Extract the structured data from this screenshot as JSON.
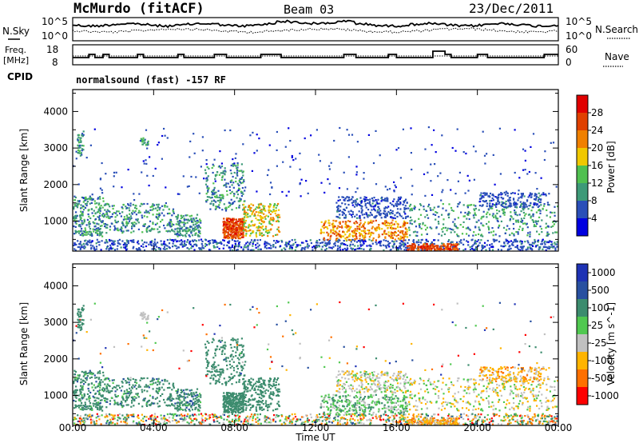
{
  "header": {
    "station": "McMurdo (fitACF)",
    "beam": "Beam 03",
    "date": "23/Dec/2011"
  },
  "noise_panel": {
    "left_label": "N.Sky",
    "right_label": "N.Search",
    "left_ticks": [
      "10^5",
      "10^0"
    ],
    "right_ticks": [
      "10^5",
      "10^0"
    ]
  },
  "freq_panel": {
    "left_label_1": "Freq.",
    "left_label_2": "[MHz]",
    "right_label": "Nave",
    "left_ticks": [
      "18",
      "8"
    ],
    "right_ticks": [
      "60",
      "0"
    ]
  },
  "cpid": {
    "label": "CPID",
    "value": "normalsound (fast) -157 RF"
  },
  "x_axis": {
    "label": "Time UT",
    "ticks": [
      "00:00",
      "04:00",
      "08:00",
      "12:00",
      "16:00",
      "20:00",
      "00:00"
    ]
  },
  "colors": {
    "power": [
      "#0000e0",
      "#2a4fb8",
      "#3d9a78",
      "#50c050",
      "#f0c800",
      "#f08000",
      "#e04000",
      "#e00000"
    ],
    "velocity": [
      "#ff0000",
      "#ff7000",
      "#ffb400",
      "#c0c0c0",
      "#50c850",
      "#3c8c6e",
      "#2850a0",
      "#1e32b4"
    ]
  },
  "chart_data": [
    {
      "type": "heatmap",
      "title": "",
      "xlabel": "Time UT",
      "ylabel": "Slant Range [km]",
      "xlim": [
        0,
        24
      ],
      "ylim": [
        180,
        4600
      ],
      "yticks": [
        "1000",
        "2000",
        "3000",
        "4000"
      ],
      "colorbar": {
        "label": "Power [dB]",
        "ticks": [
          "4",
          "8",
          "12",
          "16",
          "20",
          "24",
          "28"
        ]
      },
      "features": [
        {
          "time_range": [
            0,
            24
          ],
          "range_km": [
            200,
            500
          ],
          "level_db": "4-8"
        },
        {
          "time_range": [
            7.5,
            8.3
          ],
          "range_km": [
            600,
            1100
          ],
          "level_db": "20-30"
        },
        {
          "time_range": [
            12.6,
            15.5
          ],
          "range_km": [
            600,
            1000
          ],
          "level_db": "16-28"
        },
        {
          "time_range": [
            16.8,
            18.7
          ],
          "range_km": [
            200,
            400
          ],
          "level_db": "16-28"
        }
      ]
    },
    {
      "type": "heatmap",
      "title": "",
      "xlabel": "Time UT",
      "ylabel": "Slant Range [km]",
      "xlim": [
        0,
        24
      ],
      "ylim": [
        180,
        4600
      ],
      "yticks": [
        "1000",
        "2000",
        "3000",
        "4000"
      ],
      "colorbar": {
        "label": "Velocity [m s^-1]",
        "ticks": [
          "1000",
          "500",
          "100",
          "25",
          "-25",
          "-100",
          "-500",
          "-1000"
        ]
      },
      "features": [
        {
          "time_range": [
            6,
            11
          ],
          "range_km": [
            500,
            2500
          ],
          "velocity": "25-500"
        },
        {
          "time_range": [
            12,
            24
          ],
          "range_km": [
            500,
            2000
          ],
          "velocity": "-100-100"
        }
      ]
    }
  ]
}
